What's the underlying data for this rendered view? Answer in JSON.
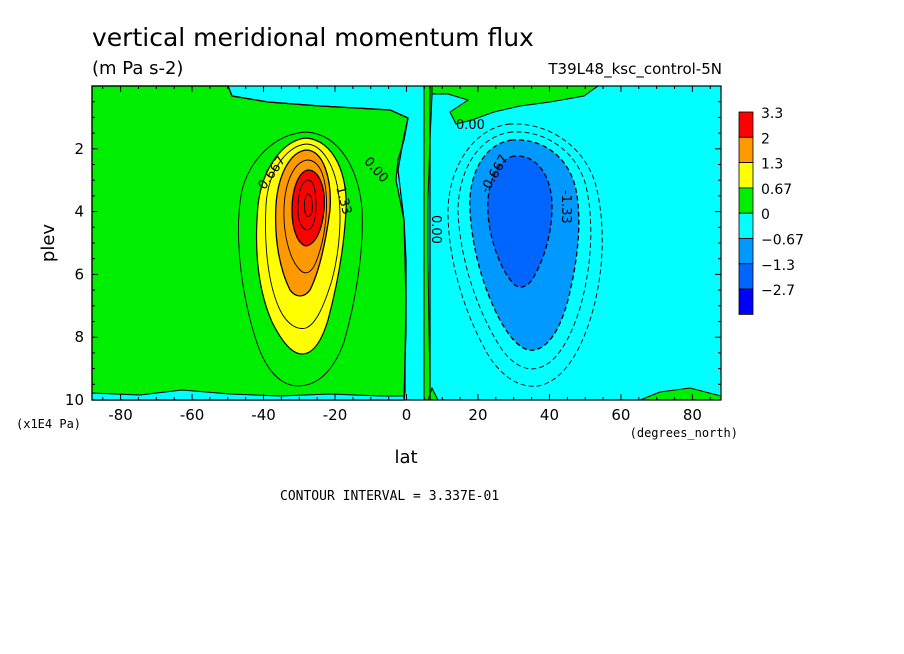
{
  "chart_data": {
    "type": "contour",
    "title": "vertical meridional momentum flux",
    "subtitle": "(m Pa s-2)",
    "run_label": "T39L48_ksc_control-5N",
    "xlabel": "lat",
    "x_units": "(degrees_north)",
    "ylabel": "plev",
    "y_units": "(x1E4 Pa)",
    "xlim": [
      -88,
      88
    ],
    "ylim": [
      10,
      0
    ],
    "x_ticks": [
      -80,
      -60,
      -40,
      -20,
      0,
      20,
      40,
      60,
      80
    ],
    "y_ticks": [
      2,
      4,
      6,
      8,
      10
    ],
    "contour_interval_text": "CONTOUR INTERVAL = 3.337E-01",
    "contour_labels": [
      "0.667",
      "1.33",
      "0.00",
      "0.00",
      "0.00",
      "-0.667",
      "-1.33"
    ],
    "legend": [
      {
        "label": "3.3",
        "color": "#ff0000"
      },
      {
        "label": "2",
        "color": "#ff9900"
      },
      {
        "label": "1.3",
        "color": "#ffff00"
      },
      {
        "label": "0.67",
        "color": "#00ee00"
      },
      {
        "label": "0",
        "color": "#00ffff"
      },
      {
        "label": "−0.67",
        "color": "#0099ff"
      },
      {
        "label": "−1.3",
        "color": "#0066ff"
      },
      {
        "label": "−2.7",
        "color": "#0000ff"
      }
    ],
    "features": [
      {
        "name": "positive-maximum",
        "lat": -28,
        "plev": 3.9,
        "value": 3.0
      },
      {
        "name": "negative-minimum",
        "lat": 33,
        "plev": 4.0,
        "value": -1.7
      }
    ],
    "grid": false,
    "legend_position": "right"
  }
}
